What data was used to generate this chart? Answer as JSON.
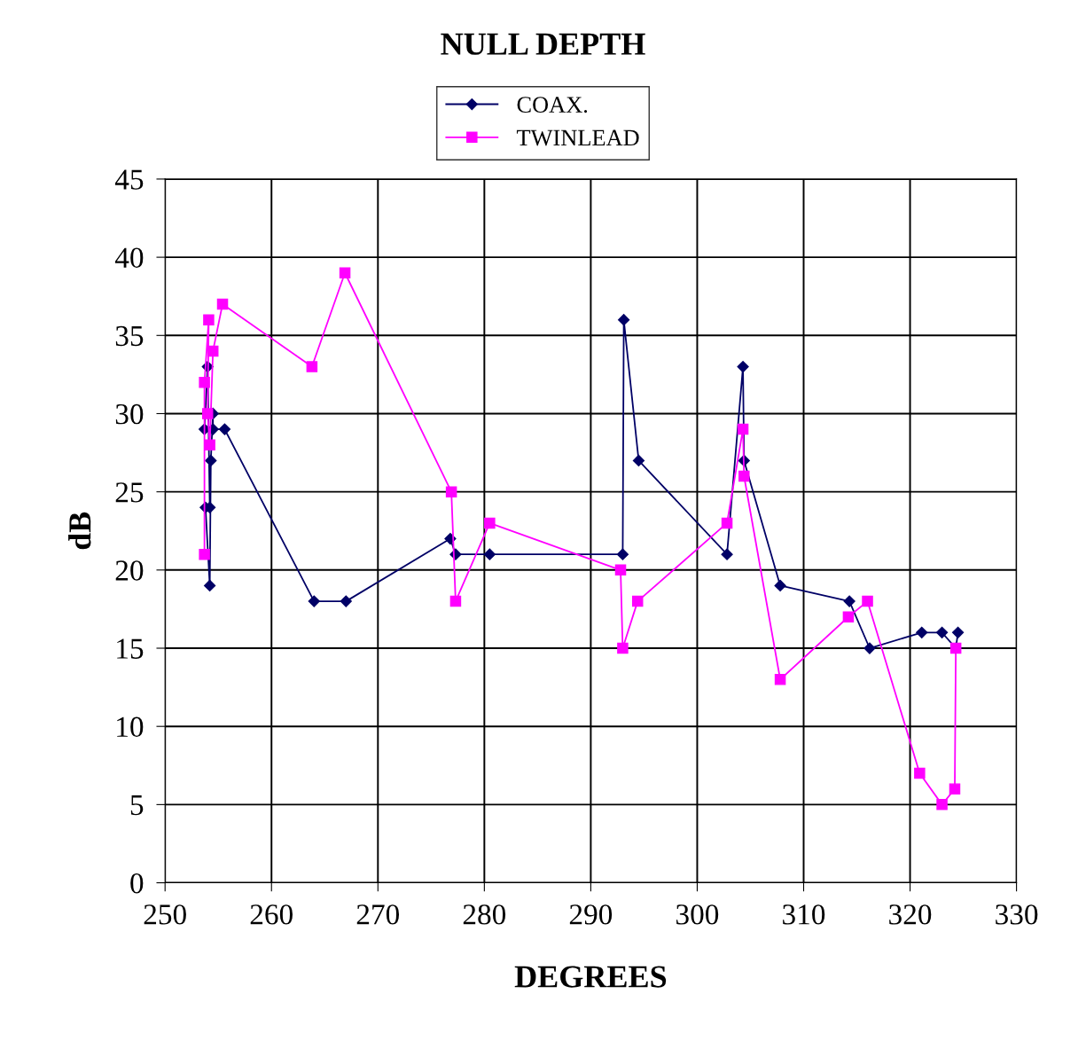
{
  "chart_data": {
    "type": "line",
    "title": "NULL DEPTH",
    "xlabel": "DEGREES",
    "ylabel": "dB",
    "xlim": [
      250,
      330
    ],
    "xticks": [
      250,
      260,
      270,
      280,
      290,
      300,
      310,
      320,
      330
    ],
    "ylim": [
      0,
      45
    ],
    "yticks": [
      0,
      5,
      10,
      15,
      20,
      25,
      30,
      35,
      40,
      45
    ],
    "grid": true,
    "legend": "top",
    "series": [
      {
        "name": "COAX.",
        "color": "#000066",
        "marker": "diamond",
        "x": [
          253.7,
          254.0,
          254.2,
          253.8,
          254.2,
          254.3,
          254.5,
          254.5,
          255.6,
          264.0,
          267.0,
          276.8,
          277.3,
          280.5,
          293.0,
          293.1,
          294.5,
          302.8,
          304.3,
          304.4,
          307.8,
          314.3,
          316.2,
          321.1,
          323.0,
          324.3,
          324.5
        ],
        "values": [
          29,
          33,
          24,
          24,
          19,
          27,
          30,
          29,
          29,
          18,
          18,
          22,
          21,
          21,
          21,
          36,
          27,
          21,
          33,
          27,
          19,
          18,
          15,
          16,
          16,
          15,
          16
        ]
      },
      {
        "name": "TWINLEAD",
        "color": "#ff00ff",
        "marker": "square",
        "x": [
          253.7,
          253.7,
          254.1,
          254.0,
          254.2,
          254.5,
          255.4,
          263.8,
          266.9,
          276.9,
          277.3,
          280.5,
          292.8,
          293.0,
          294.4,
          302.8,
          304.3,
          304.4,
          307.8,
          314.2,
          316.0,
          320.9,
          323.0,
          324.2,
          324.3
        ],
        "values": [
          21,
          32,
          36,
          30,
          28,
          34,
          37,
          33,
          39,
          25,
          18,
          23,
          20,
          15,
          18,
          23,
          29,
          26,
          13,
          17,
          18,
          7,
          5,
          6,
          15
        ]
      }
    ]
  }
}
